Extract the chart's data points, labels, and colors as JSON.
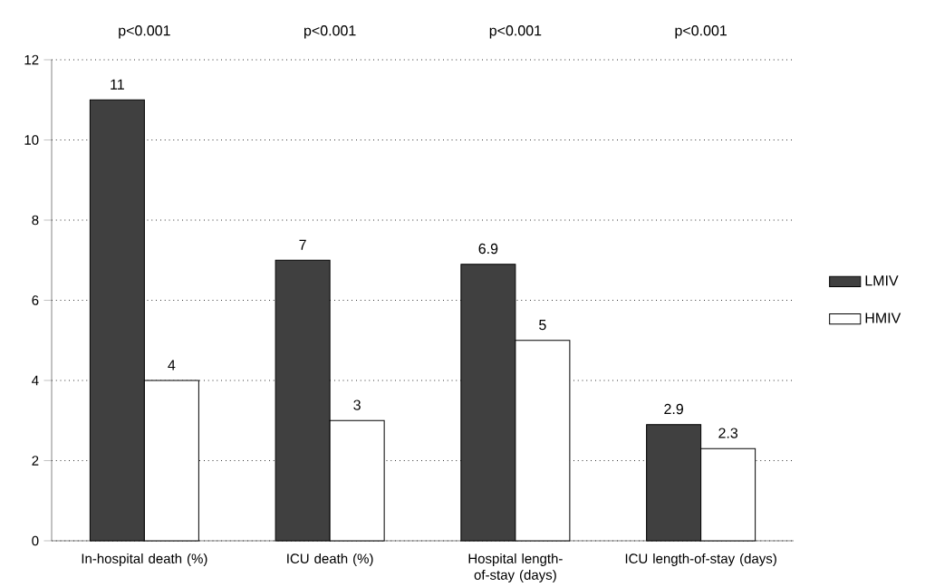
{
  "chart_data": {
    "type": "bar",
    "categories": [
      "In-hospital death (%)",
      "ICU death (%)",
      "Hospital length-of-stay (days)",
      "ICU length-of-stay (days)"
    ],
    "series": [
      {
        "name": "LMIV",
        "color": "#404040",
        "values": [
          11,
          7,
          6.9,
          2.9
        ]
      },
      {
        "name": "HMIV",
        "color": "#ffffff",
        "values": [
          4,
          3,
          5,
          2.3
        ]
      }
    ],
    "ylim": [
      0,
      12
    ],
    "yticks": [
      0,
      2,
      4,
      6,
      8,
      10,
      12
    ],
    "grid": "y",
    "legend": "right",
    "data_labels": true,
    "annotations": [
      "p<0.001",
      "p<0.001",
      "p<0.001",
      "p<0.001"
    ]
  }
}
